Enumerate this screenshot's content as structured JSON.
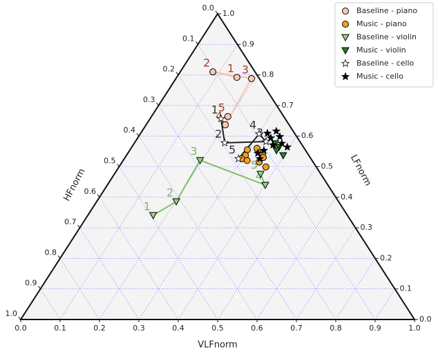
{
  "chart_data": {
    "type": "ternary",
    "xlabel": "VLFnorm",
    "rlabel": "LFnorm",
    "llabel": "HFnorm",
    "vlfticks": [
      {
        "value": 0,
        "label": "0.0"
      },
      0.1,
      0.2,
      0.3,
      0.4,
      0.5,
      0.6,
      0.7,
      0.8,
      0.9,
      {
        "value": 1,
        "label": "1.0"
      }
    ],
    "lfticks": [
      {
        "value": 0,
        "label": "0.0"
      },
      0.1,
      0.2,
      0.3,
      0.4,
      0.5,
      0.6,
      0.7,
      0.8,
      0.9,
      {
        "value": 1,
        "label": "1.0"
      }
    ],
    "hfticks": [
      {
        "value": 0,
        "label": "0.0"
      },
      0.1,
      0.2,
      0.3,
      0.4,
      0.5,
      0.6,
      0.7,
      0.8,
      0.9,
      {
        "value": 1,
        "label": "1.0"
      }
    ],
    "grid": true,
    "legend": "upper right",
    "series": [
      {
        "name": "Baseline - piano",
        "marker": "circle",
        "color": "#f9c9b0",
        "line_color": "#f7c4b0",
        "label_color": "#a0402c",
        "labels": [
          "1",
          "2",
          "3",
          "4",
          "5"
        ],
        "vlf": [
          0.153,
          0.083,
          0.192,
          0.201,
          0.194
        ],
        "lf": [
          0.792,
          0.81,
          0.788,
          0.637,
          0.664
        ]
      },
      {
        "name": "Music - piano",
        "marker": "circle",
        "color": "#f5a020",
        "vlf": [
          0.298,
          0.32,
          0.342,
          0.351,
          0.302,
          0.298,
          0.315,
          0.348,
          0.373
        ],
        "lf": [
          0.555,
          0.56,
          0.544,
          0.53,
          0.537,
          0.526,
          0.52,
          0.515,
          0.499
        ]
      },
      {
        "name": "Baseline - violin",
        "marker": "triangle",
        "color": "#98d080",
        "line_color": "#7cc05f",
        "label_color": "#7ab85c",
        "labels": [
          "1",
          "2",
          "3",
          "4",
          "5"
        ],
        "vlf": [
          0.166,
          0.202,
          0.195,
          0.401,
          0.371
        ],
        "lf": [
          0.341,
          0.386,
          0.521,
          0.44,
          0.476
        ]
      },
      {
        "name": "Music - violin",
        "marker": "triangle",
        "color": "#2a7a2a",
        "vlf": [
          0.358,
          0.374,
          0.398,
          0.373
        ],
        "lf": [
          0.576,
          0.564,
          0.537,
          0.553
        ]
      },
      {
        "name": "Baseline - cello",
        "marker": "star",
        "color": "#ffffff",
        "line_color": "#222222",
        "label_color": "#333333",
        "labels": [
          "1",
          "2",
          "3",
          "4",
          "5"
        ],
        "vlf": [
          0.18,
          0.229,
          0.332,
          0.302,
          0.29
        ],
        "lf": [
          0.657,
          0.578,
          0.582,
          0.607,
          0.526
        ]
      },
      {
        "name": "Music - cello",
        "marker": "star",
        "color": "#000000",
        "vlf": [
          0.322,
          0.338,
          0.341,
          0.359,
          0.375,
          0.395,
          0.355,
          0.341,
          0.344,
          0.33
        ],
        "lf": [
          0.609,
          0.594,
          0.616,
          0.598,
          0.576,
          0.564,
          0.571,
          0.553,
          0.526,
          0.544
        ]
      }
    ]
  }
}
